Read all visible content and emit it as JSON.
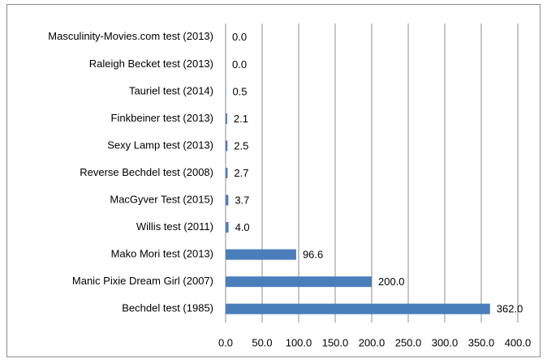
{
  "chart_data": {
    "type": "bar",
    "orientation": "horizontal",
    "categories": [
      "Masculinity-Movies.com test (2013)",
      "Raleigh Becket test (2013)",
      "Tauriel test (2014)",
      "Finkbeiner test (2013)",
      "Sexy Lamp test (2013)",
      "Reverse Bechdel test (2008)",
      "MacGyver Test (2015)",
      "Willis test (2011)",
      "Mako Mori test (2013)",
      "Manic Pixie Dream Girl (2007)",
      "Bechdel test (1985)"
    ],
    "values": [
      0,
      0,
      0.5,
      2.1,
      2.5,
      2.7,
      3.7,
      4.0,
      96.6,
      200,
      362
    ],
    "value_labels": [
      "0.0",
      "0.0",
      "0.5",
      "2.1",
      "2.5",
      "2.7",
      "3.7",
      "4.0",
      "96.6",
      "200.0",
      "362.0"
    ],
    "color": "#4a7ebb",
    "xlim": [
      0,
      400
    ],
    "xticks": [
      {
        "value": 0,
        "label": "0.0"
      },
      {
        "value": 50,
        "label": "50.0"
      },
      {
        "value": 100,
        "label": "100.0"
      },
      {
        "value": 150,
        "label": "150.0"
      },
      {
        "value": 200,
        "label": "200.0"
      },
      {
        "value": 250,
        "label": "250.0"
      },
      {
        "value": 300,
        "label": "300.0"
      },
      {
        "value": 350,
        "label": "350.0"
      },
      {
        "value": 400,
        "label": "400.0"
      }
    ],
    "grid": true
  }
}
